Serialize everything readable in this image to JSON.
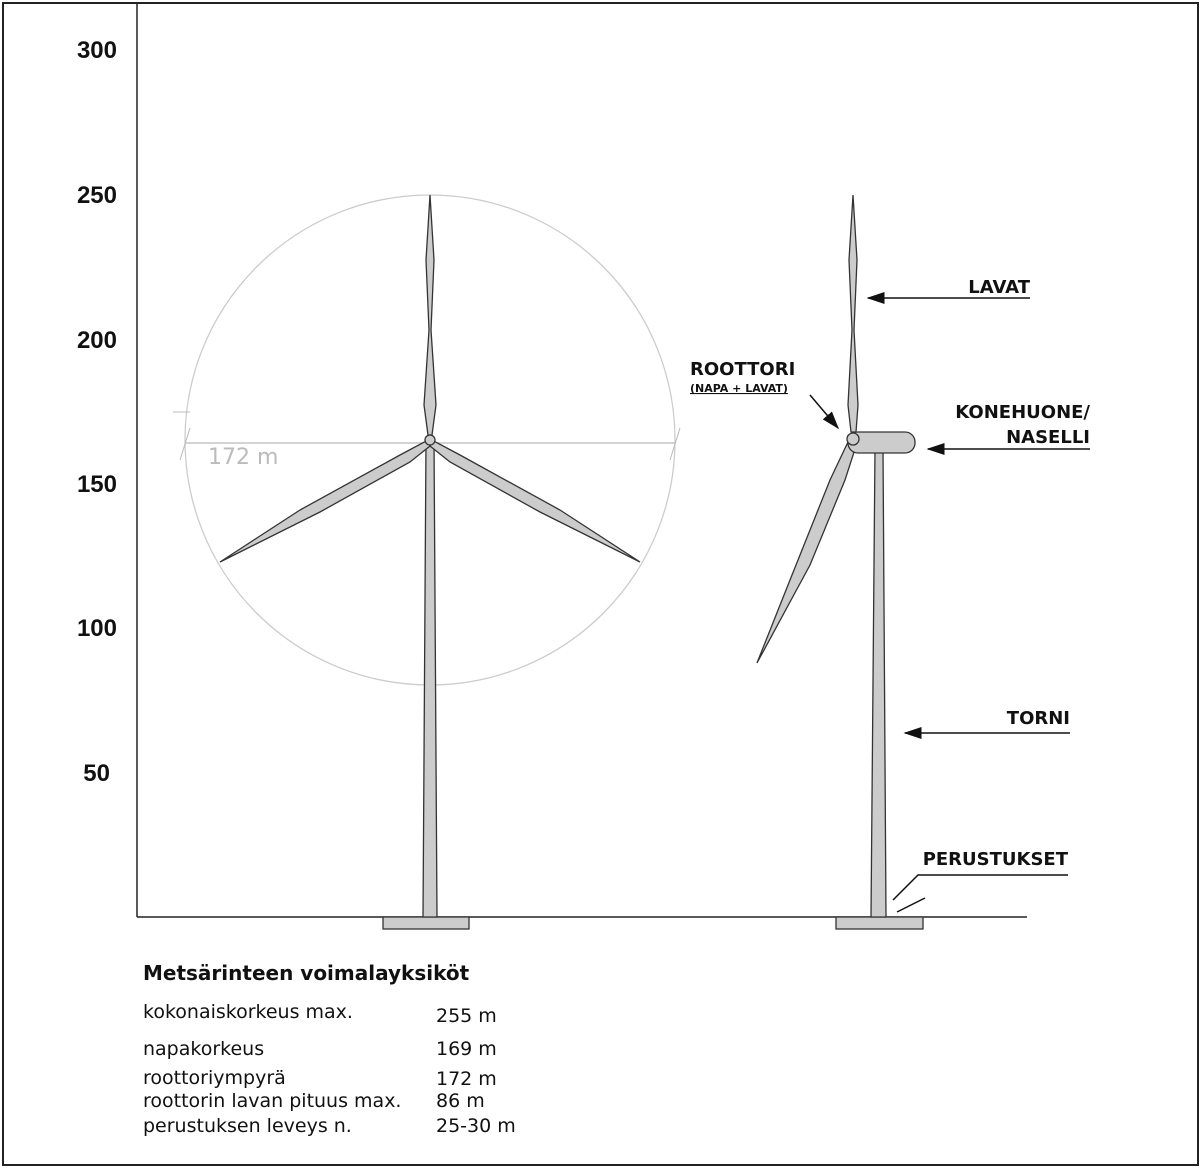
{
  "axis_labels": [
    "300",
    "250",
    "200",
    "150",
    "100",
    "50"
  ],
  "rotor_dimension": "172 m",
  "labels": {
    "blades": "LAVAT",
    "rotor": "ROOTTORI",
    "rotor_note": "(NAPA + LAVAT)",
    "nacelle_1": "KONEHUONE/",
    "nacelle_2": "NASELLI",
    "tower": "TORNI",
    "foundation": "PERUSTUKSET"
  },
  "table": {
    "title": "Metsärinteen voimalayksiköt",
    "rows": [
      [
        "kokonaiskorkeus max.",
        "255 m"
      ],
      [
        "napakorkeus",
        "169 m"
      ],
      [
        "roottoriympyrä",
        "172 m"
      ],
      [
        "roottorin lavan pituus max.",
        "86 m"
      ],
      [
        "perustuksen leveys n.",
        "25-30 m"
      ]
    ]
  }
}
